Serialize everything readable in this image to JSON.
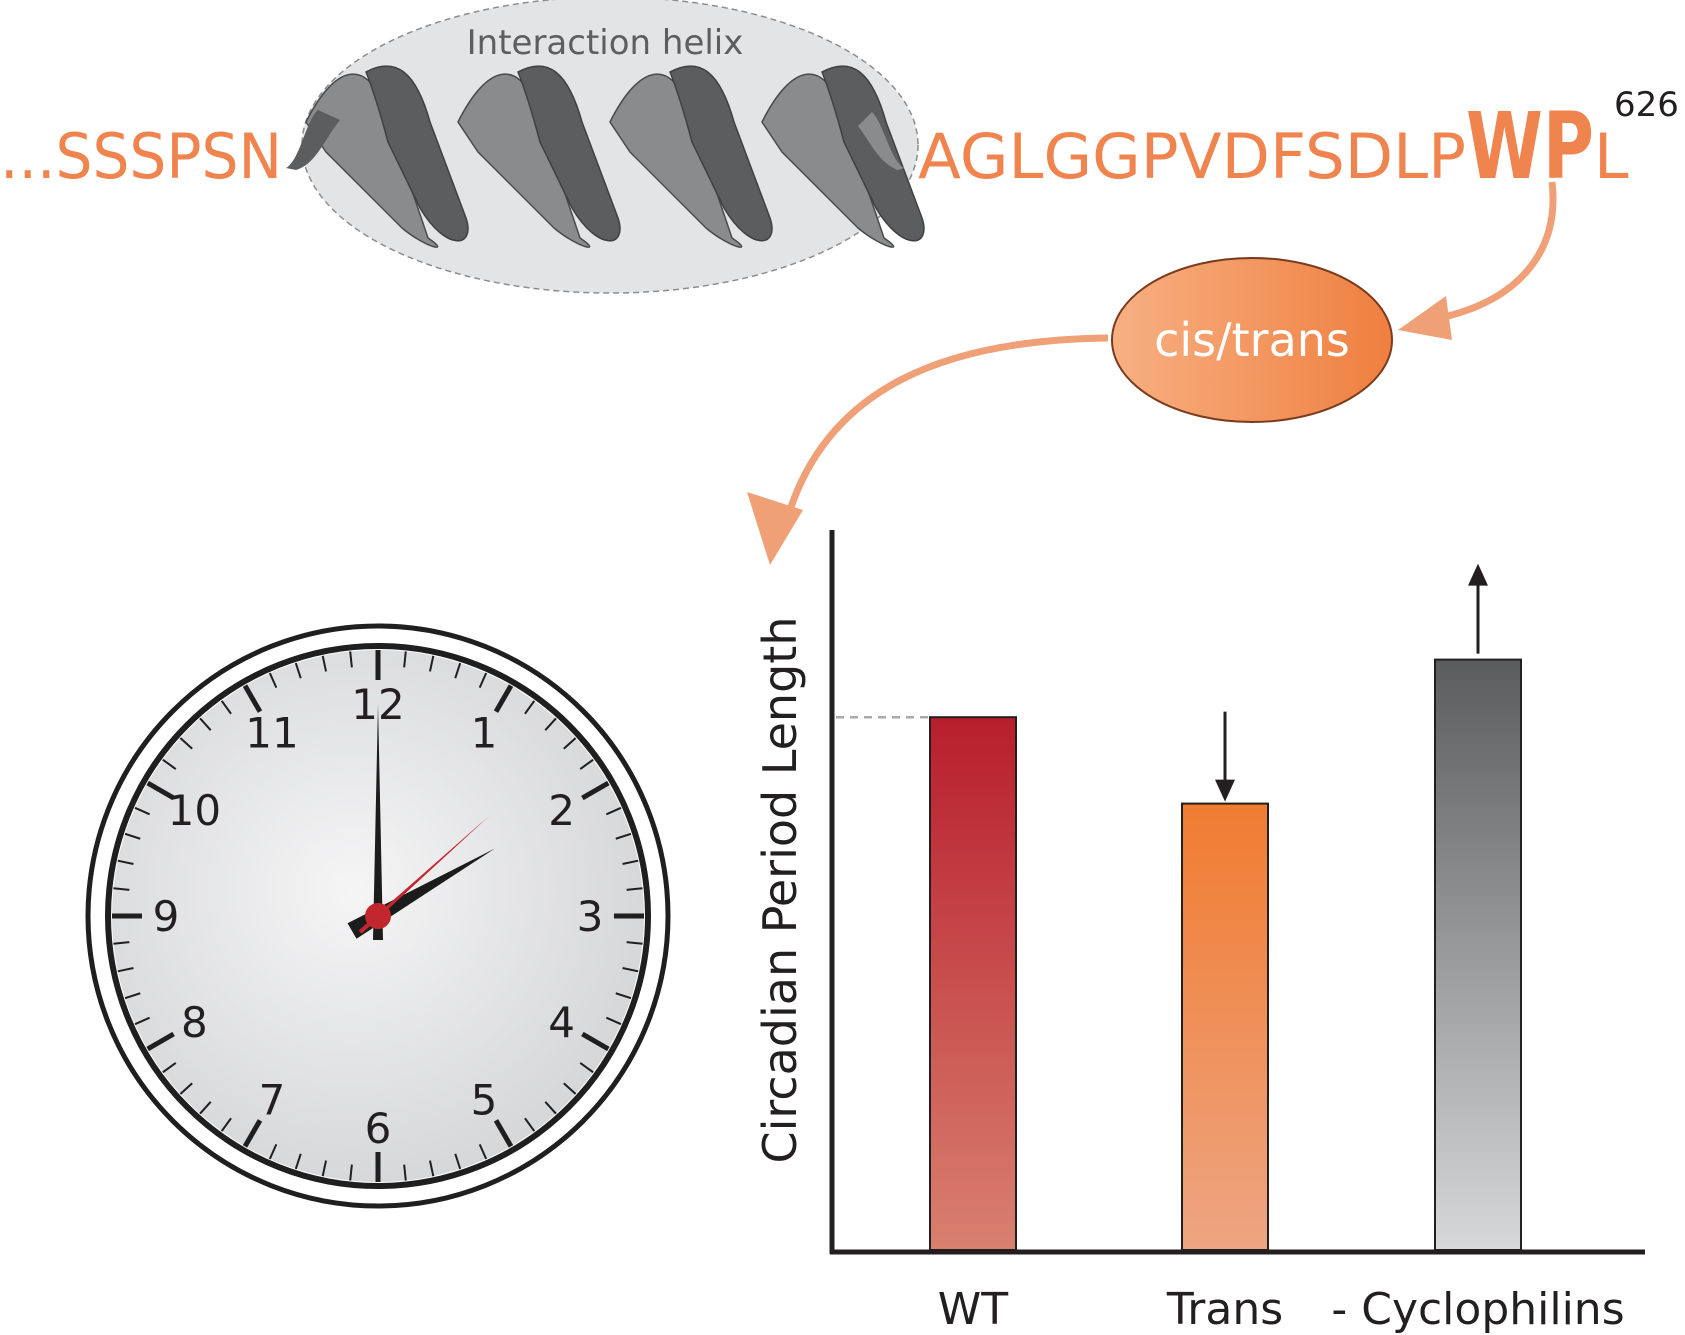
{
  "sequence": {
    "prefix": "...SSSPSN",
    "helix_label": "Interaction helix",
    "suffix": "AGLGGPVDFSDLP",
    "highlight": "WP",
    "last_residue": "L",
    "residue_number": "626"
  },
  "isomer_label": "cis/trans",
  "clock": {
    "numbers": [
      "12",
      "1",
      "2",
      "3",
      "4",
      "5",
      "6",
      "7",
      "8",
      "9",
      "10",
      "11"
    ],
    "time": {
      "hour": 2,
      "minute": 0,
      "second": 4
    }
  },
  "chart_data": {
    "type": "bar",
    "ylabel": "Circadian Period Length",
    "categories": [
      "WT",
      "Trans",
      "- Cyclophilins"
    ],
    "values": [
      0.74,
      0.62,
      0.82
    ],
    "ylim": [
      0,
      1
    ],
    "reference_line": "WT",
    "arrows": [
      "none",
      "down",
      "up"
    ],
    "colors": [
      {
        "top": "#b81e2d",
        "bottom": "#d9806f"
      },
      {
        "top": "#f07c31",
        "bottom": "#eea582"
      },
      {
        "top": "#5b5c5e",
        "bottom": "#d7d8da"
      }
    ]
  },
  "colors": {
    "accent": "#f0844f",
    "helix_dark": "#5c5d5f",
    "helix_light": "#8a8b8d",
    "ellipse_fill": "#e3e4e5",
    "second_hand": "#c1272d"
  }
}
